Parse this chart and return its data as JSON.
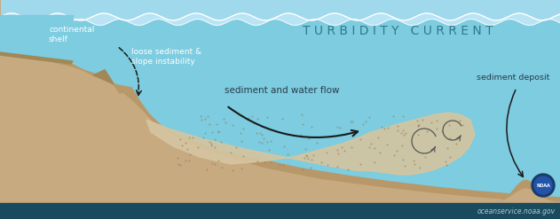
{
  "title": "T U R B I D I T Y   C U R R E N T",
  "title_color": "#2e7a8a",
  "title_fontsize": 10,
  "bg_water_color": "#7dcce0",
  "sediment_flow_color": "#d4c5a0",
  "label_continental_shelf": "continental\nshelf",
  "label_loose_sediment": "loose sediment &\nslope instability",
  "label_sediment_flow": "sediment and water flow",
  "label_sediment_deposit": "sediment deposit",
  "label_noaa": "oceanservice.noaa.gov",
  "footer_bg": "#1a4a5e",
  "footer_text_color": "#aacccc",
  "white": "#ffffff",
  "dark_text": "#2a3a4a",
  "arrow_color": "#1a1a1a",
  "land_light": "#c8aa80",
  "land_mid": "#b89868",
  "land_dark": "#a08858"
}
